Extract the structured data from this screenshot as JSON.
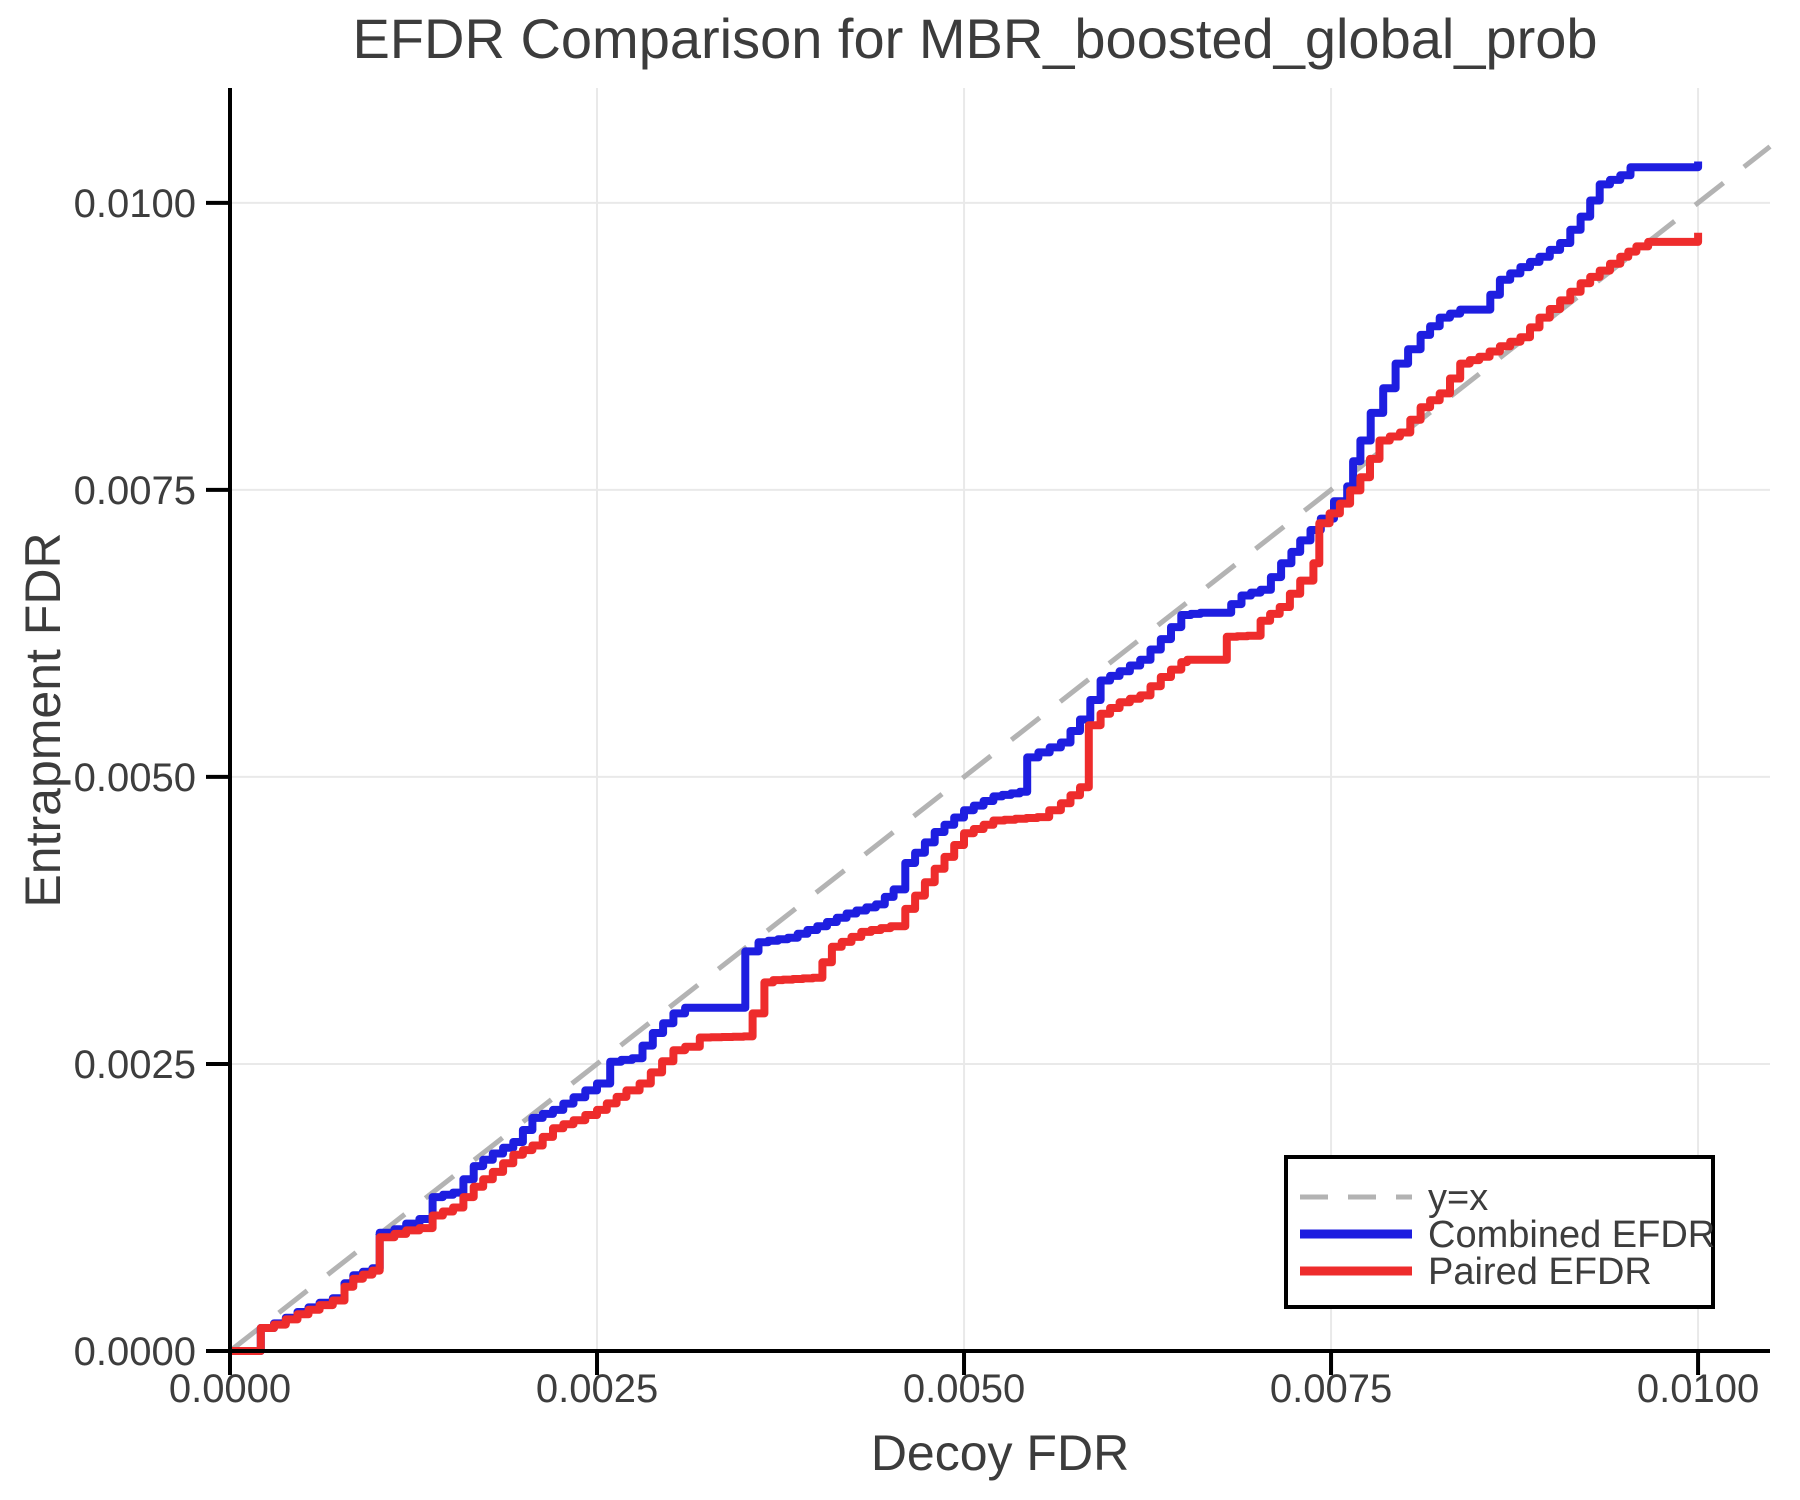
{
  "title": "EFDR Comparison for MBR_boosted_global_prob",
  "axes": {
    "x_label": "Decoy FDR",
    "y_label": "Entrapment FDR",
    "x_tick_labels": [
      "0.0000",
      "0.0025",
      "0.0050",
      "0.0075",
      "0.0100"
    ],
    "y_tick_labels": [
      "0.0000",
      "0.0025",
      "0.0050",
      "0.0075",
      "0.0100"
    ],
    "x_tick_values": [
      0,
      0.0025,
      0.005,
      0.0075,
      0.01
    ],
    "y_tick_values": [
      0,
      0.0025,
      0.005,
      0.0075,
      0.01
    ]
  },
  "colors": {
    "identity": "#b3b3b3",
    "combined": "#1e1ee0",
    "paired": "#ee2c2c",
    "grid": "#e9e9e9",
    "spine": "#000000",
    "text": "#3d3d3d"
  },
  "legend": {
    "items": [
      "y=x",
      "Combined EFDR",
      "Paired EFDR"
    ]
  },
  "chart_data": {
    "type": "line",
    "title": "EFDR Comparison for MBR_boosted_global_prob",
    "xlabel": "Decoy FDR",
    "ylabel": "Entrapment FDR",
    "xlim": [
      0,
      0.01049
    ],
    "ylim": [
      0,
      0.011
    ],
    "grid": true,
    "legend_position": "bottom-right",
    "series": [
      {
        "name": "y=x",
        "style": "dashed",
        "color": "#b3b3b3",
        "points": [
          [
            0,
            0
          ],
          [
            0.01049,
            0.01049
          ]
        ]
      },
      {
        "name": "Combined EFDR",
        "style": "step",
        "color": "#1e1ee0",
        "points": [
          [
            0,
            0
          ],
          [
            0.0002,
            0
          ],
          [
            0.00021,
            0.0002
          ],
          [
            0.0003,
            0.00024
          ],
          [
            0.00046,
            0.00034
          ],
          [
            0.00061,
            0.00042
          ],
          [
            0.0007,
            0.00046
          ],
          [
            0.00078,
            0.00059
          ],
          [
            0.00084,
            0.00066
          ],
          [
            0.00097,
            0.00072
          ],
          [
            0.00101,
            0.00072
          ],
          [
            0.00102,
            0.00103
          ],
          [
            0.00112,
            0.00106
          ],
          [
            0.0012,
            0.00111
          ],
          [
            0.00129,
            0.00115
          ],
          [
            0.00138,
            0.00134
          ],
          [
            0.00152,
            0.00138
          ],
          [
            0.00166,
            0.00161
          ],
          [
            0.00179,
            0.00172
          ],
          [
            0.00193,
            0.00182
          ],
          [
            0.00206,
            0.00203
          ],
          [
            0.0022,
            0.0021
          ],
          [
            0.00234,
            0.00221
          ],
          [
            0.0025,
            0.00233
          ],
          [
            0.00259,
            0.00252
          ],
          [
            0.00274,
            0.00255
          ],
          [
            0.00288,
            0.00277
          ],
          [
            0.00302,
            0.00294
          ],
          [
            0.0031,
            0.00299
          ],
          [
            0.00347,
            0.00299
          ],
          [
            0.00351,
            0.00348
          ],
          [
            0.0036,
            0.00356
          ],
          [
            0.0038,
            0.0036
          ],
          [
            0.004,
            0.0037
          ],
          [
            0.0042,
            0.00381
          ],
          [
            0.0044,
            0.00389
          ],
          [
            0.00452,
            0.00402
          ],
          [
            0.0046,
            0.00425
          ],
          [
            0.0048,
            0.00452
          ],
          [
            0.005,
            0.00471
          ],
          [
            0.0052,
            0.00483
          ],
          [
            0.00538,
            0.00487
          ],
          [
            0.00543,
            0.00517
          ],
          [
            0.00566,
            0.0053
          ],
          [
            0.00579,
            0.0055
          ],
          [
            0.00593,
            0.00584
          ],
          [
            0.00606,
            0.00592
          ],
          [
            0.0062,
            0.00602
          ],
          [
            0.00634,
            0.0062
          ],
          [
            0.00648,
            0.00641
          ],
          [
            0.00661,
            0.00643
          ],
          [
            0.00675,
            0.00643
          ],
          [
            0.00689,
            0.00658
          ],
          [
            0.00702,
            0.00663
          ],
          [
            0.00709,
            0.00674
          ],
          [
            0.00716,
            0.00686
          ],
          [
            0.00723,
            0.00696
          ],
          [
            0.00729,
            0.00706
          ],
          [
            0.00736,
            0.00715
          ],
          [
            0.00743,
            0.00725
          ],
          [
            0.00752,
            0.0074
          ],
          [
            0.00761,
            0.00753
          ],
          [
            0.00765,
            0.00775
          ],
          [
            0.0077,
            0.00793
          ],
          [
            0.00777,
            0.00817
          ],
          [
            0.00794,
            0.0086
          ],
          [
            0.00811,
            0.00885
          ],
          [
            0.00824,
            0.009
          ],
          [
            0.00838,
            0.00907
          ],
          [
            0.00852,
            0.00907
          ],
          [
            0.00865,
            0.00933
          ],
          [
            0.00879,
            0.00944
          ],
          [
            0.00892,
            0.00953
          ],
          [
            0.00906,
            0.00965
          ],
          [
            0.0092,
            0.00988
          ],
          [
            0.00933,
            0.01016
          ],
          [
            0.00947,
            0.01024
          ],
          [
            0.00954,
            0.01031
          ],
          [
            0.0099,
            0.01031
          ],
          [
            0.01,
            0.01036
          ]
        ]
      },
      {
        "name": "Paired EFDR",
        "style": "step",
        "color": "#ee2c2c",
        "points": [
          [
            0,
            0
          ],
          [
            0.0002,
            0
          ],
          [
            0.00021,
            0.0002
          ],
          [
            0.0003,
            0.00023
          ],
          [
            0.00046,
            0.00032
          ],
          [
            0.00061,
            0.0004
          ],
          [
            0.0007,
            0.00044
          ],
          [
            0.00078,
            0.00056
          ],
          [
            0.00084,
            0.00063
          ],
          [
            0.00097,
            0.0007
          ],
          [
            0.00101,
            0.0007
          ],
          [
            0.00102,
            0.00099
          ],
          [
            0.00112,
            0.00102
          ],
          [
            0.0012,
            0.00105
          ],
          [
            0.00129,
            0.00107
          ],
          [
            0.00138,
            0.00118
          ],
          [
            0.00152,
            0.00125
          ],
          [
            0.00166,
            0.00143
          ],
          [
            0.00179,
            0.00156
          ],
          [
            0.00193,
            0.00171
          ],
          [
            0.00206,
            0.00179
          ],
          [
            0.0022,
            0.00194
          ],
          [
            0.00234,
            0.00201
          ],
          [
            0.0025,
            0.0021
          ],
          [
            0.0027,
            0.00227
          ],
          [
            0.00279,
            0.00233
          ],
          [
            0.00302,
            0.00262
          ],
          [
            0.0031,
            0.00265
          ],
          [
            0.0032,
            0.00273
          ],
          [
            0.0035,
            0.00274
          ],
          [
            0.00356,
            0.00294
          ],
          [
            0.00364,
            0.00321
          ],
          [
            0.0037,
            0.00323
          ],
          [
            0.00397,
            0.00325
          ],
          [
            0.0041,
            0.00352
          ],
          [
            0.0043,
            0.00365
          ],
          [
            0.0045,
            0.0037
          ],
          [
            0.0046,
            0.00385
          ],
          [
            0.0048,
            0.0042
          ],
          [
            0.005,
            0.00451
          ],
          [
            0.0052,
            0.00462
          ],
          [
            0.0055,
            0.00465
          ],
          [
            0.00566,
            0.00477
          ],
          [
            0.00579,
            0.00491
          ],
          [
            0.00585,
            0.00545
          ],
          [
            0.00593,
            0.00555
          ],
          [
            0.00606,
            0.00565
          ],
          [
            0.0062,
            0.00571
          ],
          [
            0.00634,
            0.00587
          ],
          [
            0.00648,
            0.006
          ],
          [
            0.00652,
            0.00602
          ],
          [
            0.00673,
            0.00602
          ],
          [
            0.00679,
            0.00622
          ],
          [
            0.00693,
            0.00623
          ],
          [
            0.00702,
            0.00636
          ],
          [
            0.00715,
            0.00648
          ],
          [
            0.00729,
            0.00671
          ],
          [
            0.00738,
            0.00686
          ],
          [
            0.00742,
            0.00721
          ],
          [
            0.00756,
            0.00738
          ],
          [
            0.0077,
            0.00761
          ],
          [
            0.00783,
            0.00793
          ],
          [
            0.00797,
            0.008
          ],
          [
            0.00811,
            0.00822
          ],
          [
            0.00824,
            0.00834
          ],
          [
            0.00838,
            0.0086
          ],
          [
            0.00851,
            0.00866
          ],
          [
            0.00865,
            0.00875
          ],
          [
            0.00879,
            0.00883
          ],
          [
            0.00892,
            0.009
          ],
          [
            0.00906,
            0.00915
          ],
          [
            0.0092,
            0.0093
          ],
          [
            0.00933,
            0.00941
          ],
          [
            0.00947,
            0.00953
          ],
          [
            0.00958,
            0.00962
          ],
          [
            0.00966,
            0.00966
          ],
          [
            0.0099,
            0.00966
          ],
          [
            0.01,
            0.00974
          ]
        ]
      }
    ]
  }
}
